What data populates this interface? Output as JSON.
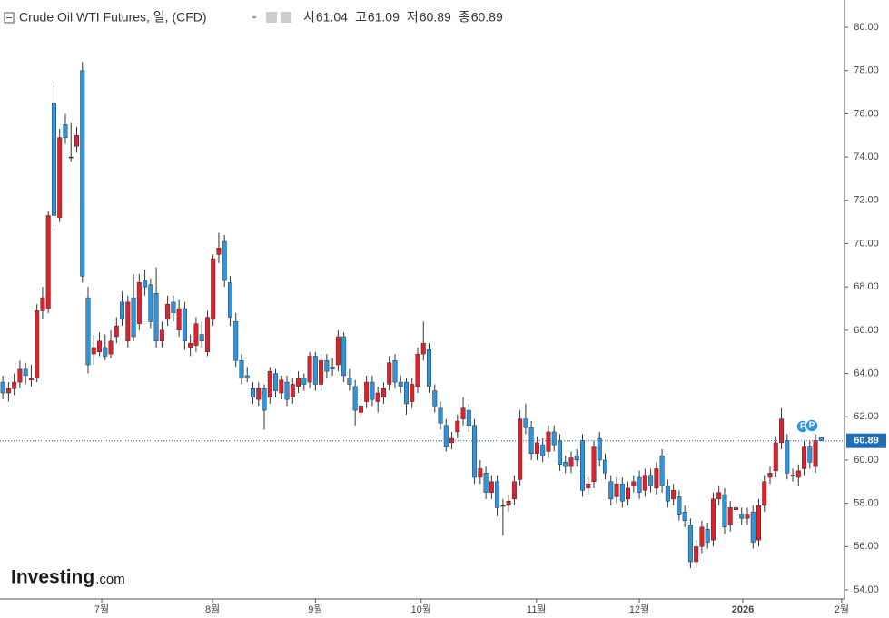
{
  "chart_data": {
    "type": "candlestick",
    "title": "Crude Oil WTI Futures, 일, (CFD)",
    "ohlc_labels": [
      "시",
      "고",
      "저",
      "종"
    ],
    "ohlc_values": [
      61.04,
      61.09,
      60.89,
      60.89
    ],
    "up_color": "#e0202a",
    "down_color": "#2b95e0",
    "candles": [
      [
        63.6,
        63.9,
        62.8,
        63.1
      ],
      [
        63.1,
        63.6,
        62.7,
        63.3
      ],
      [
        63.3,
        64.0,
        63.0,
        63.6
      ],
      [
        63.6,
        64.6,
        63.3,
        64.2
      ],
      [
        64.2,
        64.5,
        63.5,
        63.9
      ],
      [
        63.7,
        64.4,
        63.4,
        63.8
      ],
      [
        63.8,
        67.2,
        63.6,
        66.9
      ],
      [
        66.9,
        68.0,
        66.5,
        67.5
      ],
      [
        67.0,
        71.5,
        66.8,
        71.3
      ],
      [
        76.5,
        77.5,
        70.8,
        71.3
      ],
      [
        71.2,
        75.3,
        71.0,
        74.9
      ],
      [
        75.5,
        76.0,
        74.6,
        74.9
      ],
      [
        74.0,
        75.6,
        73.8,
        74.0
      ],
      [
        74.5,
        75.4,
        74.2,
        75.0
      ],
      [
        78.0,
        78.4,
        68.2,
        68.5
      ],
      [
        67.5,
        68.0,
        64.0,
        64.4
      ],
      [
        64.9,
        65.8,
        64.4,
        65.2
      ],
      [
        65.0,
        65.9,
        64.8,
        65.5
      ],
      [
        65.2,
        65.8,
        64.6,
        64.8
      ],
      [
        64.9,
        66.0,
        64.7,
        65.5
      ],
      [
        65.7,
        66.6,
        65.4,
        66.2
      ],
      [
        67.3,
        67.8,
        66.2,
        66.5
      ],
      [
        65.5,
        67.6,
        65.2,
        67.3
      ],
      [
        67.5,
        68.6,
        65.5,
        65.7
      ],
      [
        66.3,
        68.6,
        66.0,
        68.2
      ],
      [
        68.3,
        68.8,
        67.6,
        68.0
      ],
      [
        68.1,
        68.4,
        66.1,
        66.4
      ],
      [
        67.7,
        68.9,
        65.2,
        65.5
      ],
      [
        65.5,
        66.4,
        65.2,
        66.0
      ],
      [
        66.5,
        67.6,
        66.2,
        67.2
      ],
      [
        67.3,
        67.6,
        66.4,
        66.8
      ],
      [
        66.0,
        67.4,
        65.7,
        67.0
      ],
      [
        67.0,
        67.3,
        65.1,
        65.5
      ],
      [
        65.2,
        65.8,
        64.8,
        65.4
      ],
      [
        65.3,
        66.6,
        65.0,
        66.3
      ],
      [
        65.8,
        66.4,
        65.2,
        65.5
      ],
      [
        65.0,
        66.9,
        64.8,
        66.6
      ],
      [
        66.5,
        69.5,
        66.2,
        69.3
      ],
      [
        69.5,
        70.5,
        69.1,
        69.8
      ],
      [
        70.1,
        70.4,
        68.0,
        68.3
      ],
      [
        68.2,
        68.5,
        66.2,
        66.6
      ],
      [
        66.4,
        66.8,
        64.3,
        64.6
      ],
      [
        64.6,
        64.9,
        63.5,
        63.8
      ],
      [
        63.9,
        64.3,
        63.6,
        63.8
      ],
      [
        63.3,
        63.6,
        62.6,
        62.9
      ],
      [
        62.8,
        63.6,
        62.5,
        63.3
      ],
      [
        63.3,
        63.5,
        61.4,
        62.3
      ],
      [
        62.9,
        64.3,
        62.6,
        64.1
      ],
      [
        64.0,
        64.2,
        62.9,
        63.2
      ],
      [
        63.1,
        63.9,
        62.8,
        63.7
      ],
      [
        63.6,
        63.9,
        62.5,
        62.8
      ],
      [
        62.9,
        63.8,
        62.6,
        63.5
      ],
      [
        63.4,
        64.1,
        63.1,
        63.8
      ],
      [
        63.8,
        64.0,
        63.2,
        63.5
      ],
      [
        63.6,
        65.0,
        63.3,
        64.8
      ],
      [
        64.8,
        65.0,
        63.2,
        63.5
      ],
      [
        63.5,
        64.9,
        63.2,
        64.6
      ],
      [
        64.6,
        64.9,
        63.8,
        64.1
      ],
      [
        64.3,
        64.7,
        63.9,
        64.2
      ],
      [
        64.4,
        66.0,
        64.1,
        65.7
      ],
      [
        65.7,
        65.9,
        63.6,
        63.9
      ],
      [
        63.8,
        64.2,
        63.2,
        63.5
      ],
      [
        63.4,
        63.7,
        61.6,
        62.3
      ],
      [
        62.2,
        62.9,
        61.9,
        62.5
      ],
      [
        62.7,
        63.9,
        62.4,
        63.6
      ],
      [
        63.6,
        63.9,
        62.5,
        62.8
      ],
      [
        62.7,
        63.4,
        62.2,
        63.1
      ],
      [
        62.9,
        63.6,
        62.6,
        63.3
      ],
      [
        63.5,
        64.8,
        63.2,
        64.5
      ],
      [
        64.6,
        64.9,
        63.3,
        63.6
      ],
      [
        63.6,
        63.9,
        63.1,
        63.4
      ],
      [
        63.6,
        63.8,
        62.1,
        62.6
      ],
      [
        62.7,
        63.8,
        62.4,
        63.5
      ],
      [
        63.4,
        65.2,
        63.1,
        64.9
      ],
      [
        64.9,
        66.4,
        64.6,
        65.4
      ],
      [
        65.1,
        65.4,
        63.1,
        63.4
      ],
      [
        63.2,
        63.5,
        62.2,
        62.5
      ],
      [
        62.4,
        62.7,
        61.4,
        61.7
      ],
      [
        61.6,
        61.9,
        60.4,
        60.6
      ],
      [
        60.8,
        61.3,
        60.5,
        61.0
      ],
      [
        61.3,
        62.1,
        61.0,
        61.8
      ],
      [
        61.9,
        62.9,
        61.6,
        62.4
      ],
      [
        62.3,
        62.6,
        61.3,
        61.6
      ],
      [
        61.6,
        61.9,
        58.9,
        59.2
      ],
      [
        59.2,
        60.0,
        58.9,
        59.6
      ],
      [
        59.4,
        59.7,
        58.2,
        58.5
      ],
      [
        58.5,
        59.3,
        58.2,
        59.0
      ],
      [
        59.0,
        59.3,
        57.4,
        57.8
      ],
      [
        57.9,
        58.2,
        56.5,
        57.9
      ],
      [
        57.9,
        58.4,
        57.6,
        58.1
      ],
      [
        58.2,
        59.3,
        57.9,
        59.0
      ],
      [
        59.1,
        62.3,
        58.8,
        61.9
      ],
      [
        61.9,
        62.6,
        61.2,
        61.5
      ],
      [
        61.5,
        61.8,
        60.0,
        60.3
      ],
      [
        60.3,
        61.1,
        60.0,
        60.8
      ],
      [
        60.7,
        61.0,
        59.9,
        60.2
      ],
      [
        60.4,
        61.6,
        60.1,
        61.3
      ],
      [
        61.3,
        61.6,
        60.4,
        60.7
      ],
      [
        60.9,
        61.2,
        59.5,
        59.8
      ],
      [
        59.9,
        60.2,
        59.4,
        59.7
      ],
      [
        59.7,
        60.4,
        59.4,
        60.1
      ],
      [
        60.2,
        60.5,
        59.7,
        60.0
      ],
      [
        60.9,
        61.2,
        58.3,
        58.6
      ],
      [
        58.7,
        59.2,
        58.4,
        58.9
      ],
      [
        59.0,
        60.9,
        58.7,
        60.6
      ],
      [
        61.0,
        61.3,
        59.7,
        60.0
      ],
      [
        60.0,
        60.3,
        59.1,
        59.4
      ],
      [
        59.0,
        59.3,
        57.9,
        58.2
      ],
      [
        58.3,
        59.2,
        58.0,
        58.9
      ],
      [
        58.9,
        59.2,
        57.8,
        58.1
      ],
      [
        58.2,
        59.0,
        57.9,
        58.7
      ],
      [
        58.8,
        59.3,
        58.5,
        59.0
      ],
      [
        59.2,
        59.5,
        58.2,
        58.5
      ],
      [
        58.6,
        59.6,
        58.3,
        59.3
      ],
      [
        59.3,
        59.6,
        58.5,
        58.8
      ],
      [
        58.7,
        59.9,
        58.4,
        59.6
      ],
      [
        60.2,
        60.5,
        58.5,
        58.8
      ],
      [
        58.8,
        59.1,
        57.8,
        58.1
      ],
      [
        58.2,
        58.9,
        57.9,
        58.6
      ],
      [
        58.3,
        58.6,
        57.2,
        57.5
      ],
      [
        57.6,
        57.9,
        56.9,
        57.2
      ],
      [
        57.0,
        57.3,
        55.0,
        55.3
      ],
      [
        55.3,
        56.3,
        55.0,
        56.0
      ],
      [
        56.0,
        57.2,
        55.7,
        56.9
      ],
      [
        56.8,
        57.1,
        55.9,
        56.2
      ],
      [
        56.3,
        58.5,
        56.0,
        58.2
      ],
      [
        58.2,
        58.8,
        57.9,
        58.5
      ],
      [
        58.4,
        58.7,
        56.6,
        56.9
      ],
      [
        57.0,
        58.1,
        56.7,
        57.8
      ],
      [
        57.7,
        58.1,
        57.4,
        57.8
      ],
      [
        57.5,
        57.8,
        57.0,
        57.3
      ],
      [
        57.3,
        57.8,
        57.0,
        57.5
      ],
      [
        57.6,
        57.9,
        55.9,
        56.2
      ],
      [
        56.3,
        58.2,
        56.0,
        57.9
      ],
      [
        57.9,
        59.3,
        57.6,
        59.0
      ],
      [
        59.2,
        59.7,
        58.9,
        59.4
      ],
      [
        59.5,
        61.1,
        59.2,
        60.8
      ],
      [
        60.8,
        62.4,
        60.5,
        61.9
      ],
      [
        60.9,
        61.2,
        59.1,
        59.4
      ],
      [
        59.3,
        59.6,
        59.0,
        59.3
      ],
      [
        59.2,
        59.8,
        58.8,
        59.5
      ],
      [
        59.6,
        60.9,
        59.3,
        60.6
      ],
      [
        60.6,
        60.9,
        59.6,
        59.9
      ],
      [
        59.7,
        61.2,
        59.4,
        60.9
      ],
      [
        61.04,
        61.09,
        60.89,
        60.89
      ]
    ],
    "last_price": {
      "value": 60.89,
      "label": "60.89"
    },
    "xlim": [
      -0.5,
      148.1
    ],
    "xticks": [
      {
        "value": 17.4,
        "label": "7월"
      },
      {
        "value": 36.9,
        "label": "8월"
      },
      {
        "value": 55,
        "label": "9월"
      },
      {
        "value": 73.6,
        "label": "10월"
      },
      {
        "value": 93.9,
        "label": "11월"
      },
      {
        "value": 112,
        "label": "12월"
      },
      {
        "value": 130.2,
        "label": "2026"
      },
      {
        "value": 147.6,
        "label": "2월"
      }
    ],
    "ylim": [
      53.58,
      81.26
    ],
    "yticks": [
      {
        "value": 54,
        "label": "54.00"
      },
      {
        "value": 56,
        "label": "56.00"
      },
      {
        "value": 58,
        "label": "58.00"
      },
      {
        "value": 60,
        "label": "60.00"
      },
      {
        "value": 62,
        "label": "62.00"
      },
      {
        "value": 64,
        "label": "64.00"
      },
      {
        "value": 66,
        "label": "66.00"
      },
      {
        "value": 68,
        "label": "68.00"
      },
      {
        "value": 70,
        "label": "70.00"
      },
      {
        "value": 72,
        "label": "72.00"
      },
      {
        "value": 74,
        "label": "74.00"
      },
      {
        "value": 76,
        "label": "76.00"
      },
      {
        "value": 78,
        "label": "78.00"
      },
      {
        "value": 80,
        "label": "80.00"
      }
    ],
    "grid": false,
    "event_markers": [
      "F",
      "P"
    ],
    "watermark": [
      "Investing",
      ".com"
    ]
  }
}
